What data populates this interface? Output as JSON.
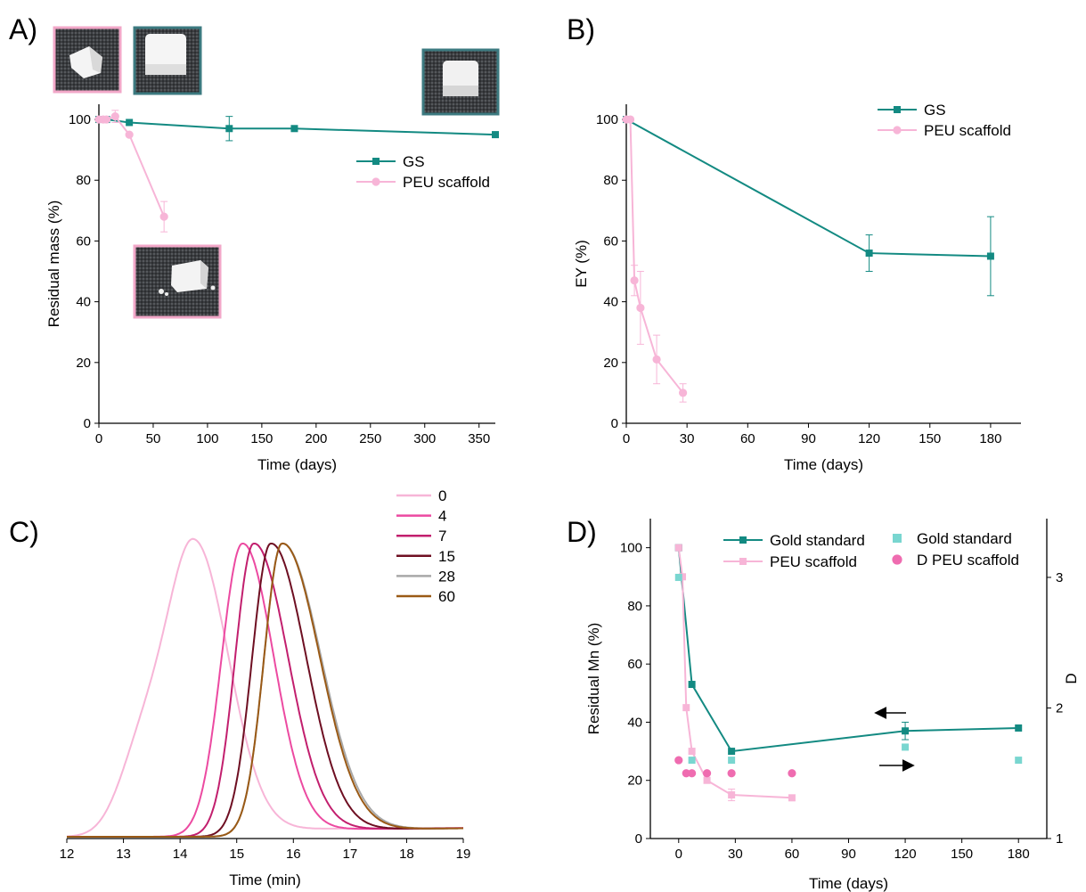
{
  "colors": {
    "gs": "#138a82",
    "gs_light": "#79d6d0",
    "peu": "#f7b5d7",
    "peu_dark": "#ef6cb0"
  },
  "panels": [
    {
      "id": "A",
      "label": "A)"
    },
    {
      "id": "B",
      "label": "B)"
    },
    {
      "id": "C",
      "label": "C)"
    },
    {
      "id": "D",
      "label": "D)"
    }
  ],
  "chart_data": [
    {
      "panel": "A",
      "type": "line",
      "xlabel": "Time (days)",
      "ylabel": "Residual mass (%)",
      "xlim": [
        0,
        365
      ],
      "ylim": [
        0,
        105
      ],
      "xticks": [
        0,
        50,
        100,
        150,
        200,
        250,
        300,
        350
      ],
      "yticks": [
        0,
        20,
        40,
        60,
        80,
        100
      ],
      "legend_position": "middle-right",
      "insets": [
        "photo-cube-peu-before",
        "photo-cube-gs-before",
        "photo-cube-gs-after",
        "photo-cube-peu-after"
      ],
      "series": [
        {
          "name": "GS",
          "color": "#138a82",
          "marker": "square",
          "x": [
            0,
            7,
            28,
            120,
            180,
            365
          ],
          "y": [
            100,
            100,
            99,
            97,
            97,
            95
          ],
          "err": [
            0,
            0,
            0,
            4,
            0,
            0
          ]
        },
        {
          "name": "PEU scaffold",
          "color": "#f7b5d7",
          "marker": "circle",
          "x": [
            0,
            4,
            7,
            15,
            28,
            60
          ],
          "y": [
            100,
            100,
            100,
            101,
            95,
            68
          ],
          "err": [
            0,
            0,
            0,
            2,
            0,
            5
          ]
        }
      ]
    },
    {
      "panel": "B",
      "type": "line",
      "xlabel": "Time (days)",
      "ylabel": "EY (%)",
      "xlim": [
        0,
        195
      ],
      "ylim": [
        0,
        105
      ],
      "xticks": [
        0,
        30,
        60,
        90,
        120,
        150,
        180
      ],
      "yticks": [
        0,
        20,
        40,
        60,
        80,
        100
      ],
      "legend_position": "top-right",
      "series": [
        {
          "name": "GS",
          "color": "#138a82",
          "marker": "square",
          "x": [
            0,
            120,
            180
          ],
          "y": [
            100,
            56,
            55
          ],
          "err": [
            0,
            6,
            13
          ]
        },
        {
          "name": "PEU scaffold",
          "color": "#f7b5d7",
          "marker": "circle",
          "x": [
            0,
            2,
            4,
            7,
            15,
            28
          ],
          "y": [
            100,
            100,
            47,
            38,
            21,
            10
          ],
          "err": [
            0,
            0,
            5,
            12,
            8,
            3
          ]
        }
      ]
    },
    {
      "panel": "C",
      "type": "line",
      "xlabel": "Time (min)",
      "xlim": [
        12,
        19
      ],
      "xticks": [
        12,
        13,
        14,
        15,
        16,
        17,
        18,
        19
      ],
      "legend_position": "top-right",
      "series": [
        {
          "name": "0",
          "color": "#f7b5d7",
          "peak": 14.25,
          "sl": 0.5,
          "sr": 0.6,
          "sh": true
        },
        {
          "name": "4",
          "color": "#ec4aa1",
          "peak": 15.1,
          "sl": 0.37,
          "sr": 0.55
        },
        {
          "name": "7",
          "color": "#c21f6e",
          "peak": 15.3,
          "sl": 0.33,
          "sr": 0.6
        },
        {
          "name": "15",
          "color": "#6e0f22",
          "peak": 15.6,
          "sl": 0.33,
          "sr": 0.62
        },
        {
          "name": "28",
          "color": "#a8a8a8",
          "peak": 15.8,
          "sl": 0.32,
          "sr": 0.68
        },
        {
          "name": "60",
          "color": "#9a5a16",
          "peak": 15.8,
          "sl": 0.32,
          "sr": 0.66
        }
      ]
    },
    {
      "panel": "D",
      "type": "line",
      "xlabel": "Time (days)",
      "ylabel": "Residual Mn (%)",
      "ylabel_right": "D",
      "xlim": [
        -15,
        195
      ],
      "ylim": [
        0,
        110
      ],
      "ylim_right": [
        1,
        3.45
      ],
      "xticks": [
        0,
        30,
        60,
        90,
        120,
        150,
        180
      ],
      "yticks": [
        0,
        20,
        40,
        60,
        80,
        100
      ],
      "yticks_right": [
        1,
        2,
        3
      ],
      "legend_position": "top",
      "arrows": [
        "left-axis-arrow",
        "right-axis-arrow"
      ],
      "series": [
        {
          "name": "Gold standard",
          "axis": "left",
          "color": "#138a82",
          "marker": "square",
          "line": true,
          "x": [
            0,
            7,
            28,
            120,
            180
          ],
          "y": [
            100,
            53,
            30,
            37,
            38
          ],
          "err": [
            0,
            0,
            0,
            3,
            0
          ]
        },
        {
          "name": "PEU scaffold",
          "axis": "left",
          "color": "#f7b5d7",
          "marker": "square",
          "line": true,
          "x": [
            0,
            2,
            4,
            7,
            15,
            28,
            60
          ],
          "y": [
            100,
            90,
            45,
            30,
            20,
            15,
            14
          ],
          "err": [
            0,
            0,
            0,
            0,
            0,
            2,
            0
          ]
        },
        {
          "name": "Gold standard",
          "axis": "right",
          "color": "#79d6d0",
          "marker": "square",
          "line": false,
          "x": [
            0,
            7,
            28,
            120,
            180
          ],
          "y": [
            3.0,
            1.6,
            1.6,
            1.7,
            1.6
          ]
        },
        {
          "name": "D PEU scaffold",
          "axis": "right",
          "color": "#ef6cb0",
          "marker": "circle",
          "line": false,
          "x": [
            0,
            4,
            7,
            15,
            28,
            60
          ],
          "y": [
            1.6,
            1.5,
            1.5,
            1.5,
            1.5,
            1.5
          ]
        }
      ]
    }
  ]
}
